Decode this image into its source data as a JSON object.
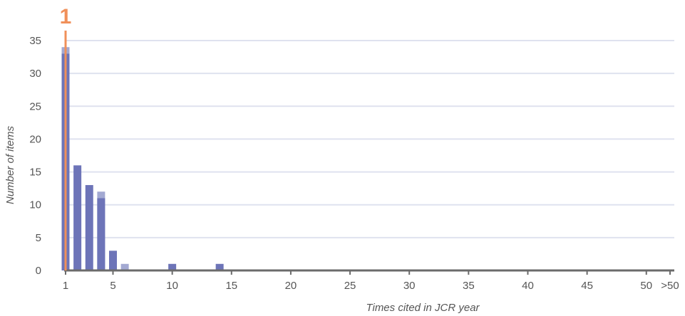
{
  "chart_data": {
    "type": "bar",
    "xlabel": "Times cited in JCR year",
    "ylabel": "Number of items",
    "ylim": [
      0,
      35
    ],
    "xlim": [
      1,
      52
    ],
    "y_ticks": [
      0,
      5,
      10,
      15,
      20,
      25,
      30,
      35
    ],
    "x_ticks": [
      {
        "value": 1,
        "label": "1"
      },
      {
        "value": 5,
        "label": "5"
      },
      {
        "value": 10,
        "label": "10"
      },
      {
        "value": 15,
        "label": "15"
      },
      {
        "value": 20,
        "label": "20"
      },
      {
        "value": 25,
        "label": "25"
      },
      {
        "value": 30,
        "label": "30"
      },
      {
        "value": 35,
        "label": "35"
      },
      {
        "value": 40,
        "label": "40"
      },
      {
        "value": 45,
        "label": "45"
      },
      {
        "value": 50,
        "label": "50"
      },
      {
        "value": 52,
        "label": ">50"
      }
    ],
    "grid": "horizontal",
    "series": [
      {
        "color": "#6d74b8",
        "points": [
          {
            "x": 1,
            "y": 33
          },
          {
            "x": 2,
            "y": 16
          },
          {
            "x": 3,
            "y": 13
          },
          {
            "x": 4,
            "y": 11
          },
          {
            "x": 5,
            "y": 3
          },
          {
            "x": 10,
            "y": 1
          },
          {
            "x": 14,
            "y": 1
          }
        ]
      },
      {
        "color": "#a3a9d2",
        "points": [
          {
            "x": 1,
            "y": 34
          },
          {
            "x": 4,
            "y": 12
          },
          {
            "x": 6,
            "y": 1
          }
        ]
      }
    ],
    "marker": {
      "x": 1,
      "label": "1",
      "color": "#f0905a"
    }
  }
}
